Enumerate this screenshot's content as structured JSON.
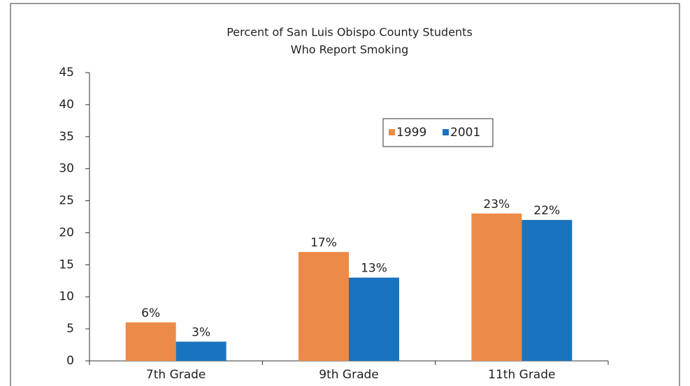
{
  "chart_data": {
    "type": "bar",
    "title": [
      "Percent of San Luis Obispo County Students",
      "Who Report Smoking"
    ],
    "categories": [
      "7th Grade",
      "9th Grade",
      "11th Grade"
    ],
    "series": [
      {
        "name": "1999",
        "color": "#ec8b47",
        "values": [
          6,
          17,
          23
        ],
        "value_labels": [
          "6%",
          "17%",
          "23%"
        ]
      },
      {
        "name": "2001",
        "color": "#1a74bd",
        "values": [
          3,
          13,
          22
        ],
        "value_labels": [
          "3%",
          "13%",
          "22%"
        ]
      }
    ],
    "ylim": [
      0,
      45
    ],
    "yticks": [
      0,
      5,
      10,
      15,
      20,
      25,
      30,
      35,
      40,
      45
    ],
    "legend": "top-right",
    "grid": false
  }
}
